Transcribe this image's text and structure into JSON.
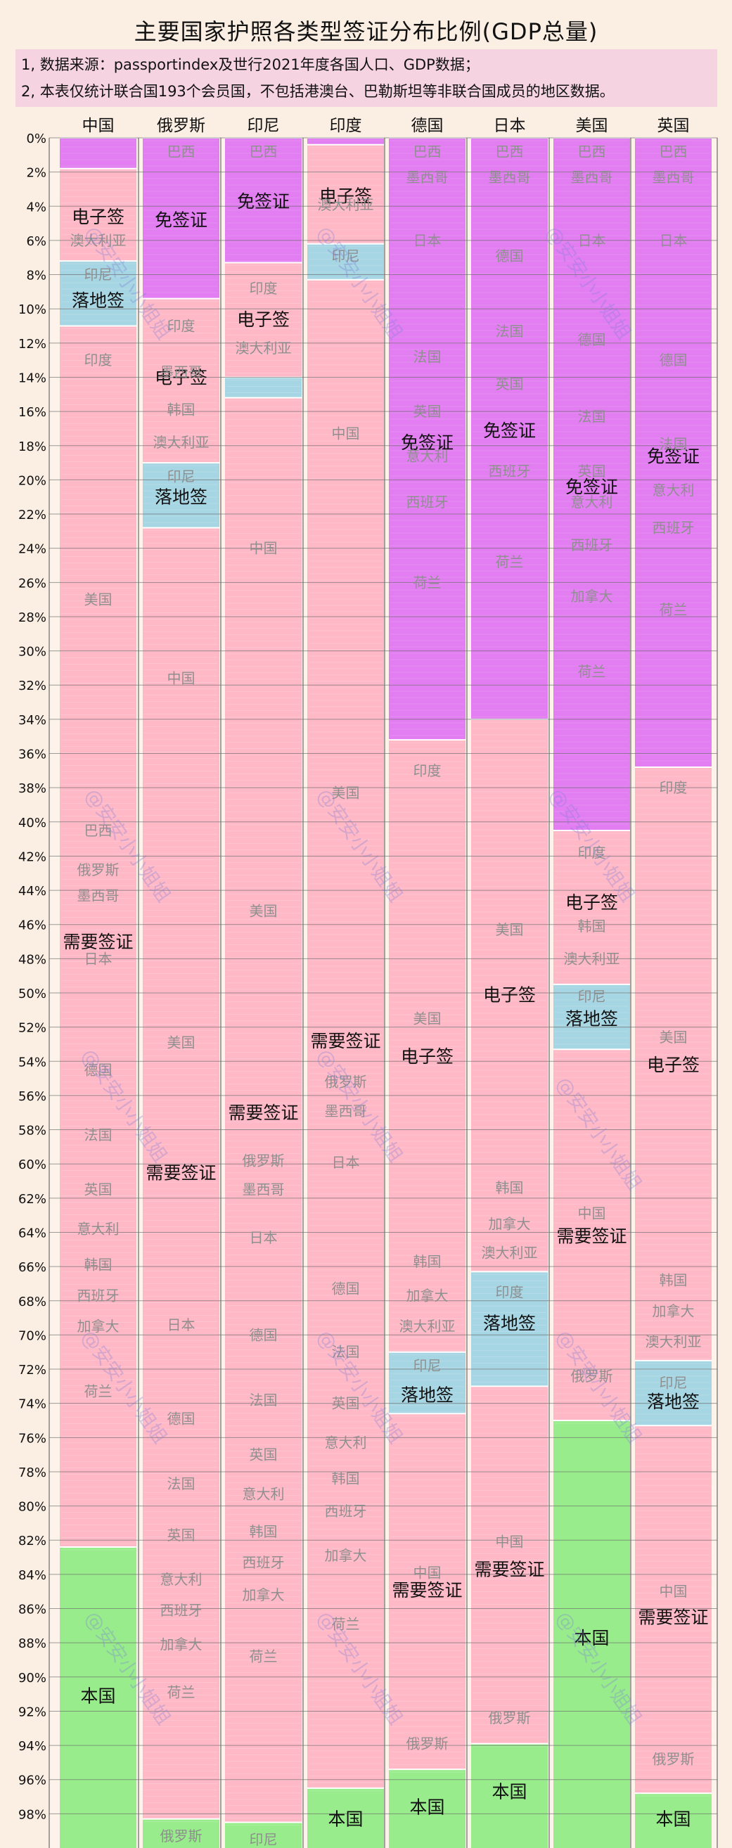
{
  "title": "主要国家护照各类型签证分布比例(GDP总量)",
  "notes": [
    "1, 数据来源：passportindex及世行2021年度各国人口、GDP数据；",
    "2, 本表仅统计联合国193个会员国，不包括港澳台、巴勒斯坦等非联合国成员的地区数据。"
  ],
  "watermark": "@安安小小姐姐",
  "colors": {
    "免签证": "#e27ef2",
    "电子签": "#ffb8c6",
    "落地签": "#a6d5e3",
    "需要签证": "#ffb8c6",
    "本国": "#98ec8c"
  },
  "chart_data": {
    "type": "bar",
    "stacked": true,
    "orientation": "vertical",
    "inverted_y": true,
    "unit": "%",
    "ylim": [
      0,
      100
    ],
    "yticks": [
      0,
      2,
      4,
      6,
      8,
      10,
      12,
      14,
      16,
      18,
      20,
      22,
      24,
      26,
      28,
      30,
      32,
      34,
      36,
      38,
      40,
      42,
      44,
      46,
      48,
      50,
      52,
      54,
      56,
      58,
      60,
      62,
      64,
      66,
      68,
      70,
      72,
      74,
      76,
      78,
      80,
      82,
      84,
      86,
      88,
      90,
      92,
      94,
      96,
      98
    ],
    "grid": true,
    "categories": [
      "中国",
      "俄罗斯",
      "印尼",
      "印度",
      "德国",
      "日本",
      "美国",
      "英国"
    ],
    "columns": [
      {
        "country": "中国",
        "segments": [
          {
            "type": "免签证",
            "start": 0,
            "end": 1.8
          },
          {
            "type": "电子签",
            "start": 1.8,
            "end": 7.2,
            "label": "电子签",
            "mid": 4.6
          },
          {
            "type": "落地签",
            "start": 7.2,
            "end": 11.0,
            "label": "落地签",
            "mid": 9.5
          },
          {
            "type": "需要签证",
            "start": 11.0,
            "end": 82.4,
            "label": "需要签证",
            "mid": 47.0
          },
          {
            "type": "本国",
            "start": 82.4,
            "end": 100,
            "label": "本国",
            "mid": 91.1
          }
        ],
        "country_labels": [
          {
            "name": "澳大利亚",
            "at": 6.0
          },
          {
            "name": "印尼",
            "at": 8.0
          },
          {
            "name": "印度",
            "at": 13.0
          },
          {
            "name": "美国",
            "at": 27.0
          },
          {
            "name": "巴西",
            "at": 40.5
          },
          {
            "name": "俄罗斯",
            "at": 42.8
          },
          {
            "name": "墨西哥",
            "at": 44.3
          },
          {
            "name": "日本",
            "at": 48.0
          },
          {
            "name": "德国",
            "at": 54.5
          },
          {
            "name": "法国",
            "at": 58.3
          },
          {
            "name": "英国",
            "at": 61.5
          },
          {
            "name": "意大利",
            "at": 63.8
          },
          {
            "name": "韩国",
            "at": 65.9
          },
          {
            "name": "西班牙",
            "at": 67.7
          },
          {
            "name": "加拿大",
            "at": 69.5
          },
          {
            "name": "荷兰",
            "at": 73.3
          }
        ]
      },
      {
        "country": "俄罗斯",
        "segments": [
          {
            "type": "免签证",
            "start": 0,
            "end": 9.4,
            "label": "免签证",
            "mid": 4.8
          },
          {
            "type": "电子签",
            "start": 9.4,
            "end": 19.0,
            "label": "电子签",
            "mid": 14.0
          },
          {
            "type": "落地签",
            "start": 19.0,
            "end": 22.8,
            "label": "落地签",
            "mid": 21.0
          },
          {
            "type": "需要签证",
            "start": 22.8,
            "end": 98.3,
            "label": "需要签证",
            "mid": 60.5
          },
          {
            "type": "本国",
            "start": 98.3,
            "end": 100
          }
        ],
        "country_labels": [
          {
            "name": "巴西",
            "at": 0.8
          },
          {
            "name": "印度",
            "at": 11.0
          },
          {
            "name": "墨西哥",
            "at": 13.7
          },
          {
            "name": "韩国",
            "at": 15.9
          },
          {
            "name": "澳大利亚",
            "at": 17.8
          },
          {
            "name": "印尼",
            "at": 19.8
          },
          {
            "name": "中国",
            "at": 31.6
          },
          {
            "name": "美国",
            "at": 52.9
          },
          {
            "name": "日本",
            "at": 69.4
          },
          {
            "name": "德国",
            "at": 74.9
          },
          {
            "name": "法国",
            "at": 78.7
          },
          {
            "name": "英国",
            "at": 81.7
          },
          {
            "name": "意大利",
            "at": 84.3
          },
          {
            "name": "西班牙",
            "at": 86.1
          },
          {
            "name": "加拿大",
            "at": 88.1
          },
          {
            "name": "荷兰",
            "at": 90.9
          },
          {
            "name": "俄罗斯",
            "at": 99.3
          }
        ]
      },
      {
        "country": "印尼",
        "segments": [
          {
            "type": "免签证",
            "start": 0,
            "end": 7.3,
            "label": "免签证",
            "mid": 3.7
          },
          {
            "type": "电子签",
            "start": 7.3,
            "end": 14.0,
            "label": "电子签",
            "mid": 10.6
          },
          {
            "type": "落地签",
            "start": 14.0,
            "end": 15.2
          },
          {
            "type": "需要签证",
            "start": 15.2,
            "end": 98.5,
            "label": "需要签证",
            "mid": 57.0
          },
          {
            "type": "本国",
            "start": 98.5,
            "end": 100
          }
        ],
        "country_labels": [
          {
            "name": "巴西",
            "at": 0.8
          },
          {
            "name": "印度",
            "at": 8.8
          },
          {
            "name": "澳大利亚",
            "at": 12.3
          },
          {
            "name": "中国",
            "at": 24.0
          },
          {
            "name": "美国",
            "at": 45.2
          },
          {
            "name": "俄罗斯",
            "at": 59.8
          },
          {
            "name": "墨西哥",
            "at": 61.5
          },
          {
            "name": "日本",
            "at": 64.3
          },
          {
            "name": "德国",
            "at": 70.0
          },
          {
            "name": "法国",
            "at": 73.8
          },
          {
            "name": "英国",
            "at": 77.0
          },
          {
            "name": "意大利",
            "at": 79.3
          },
          {
            "name": "韩国",
            "at": 81.5
          },
          {
            "name": "西班牙",
            "at": 83.3
          },
          {
            "name": "加拿大",
            "at": 85.2
          },
          {
            "name": "荷兰",
            "at": 88.8
          },
          {
            "name": "印尼",
            "at": 99.5
          }
        ]
      },
      {
        "country": "印度",
        "segments": [
          {
            "type": "免签证",
            "start": 0,
            "end": 0.4
          },
          {
            "type": "电子签",
            "start": 0.4,
            "end": 6.2,
            "label": "电子签",
            "mid": 3.4
          },
          {
            "type": "落地签",
            "start": 6.2,
            "end": 8.3
          },
          {
            "type": "需要签证",
            "start": 8.3,
            "end": 96.5,
            "label": "需要签证",
            "mid": 52.8
          },
          {
            "type": "本国",
            "start": 96.5,
            "end": 100,
            "label": "本国",
            "mid": 98.3
          }
        ],
        "country_labels": [
          {
            "name": "澳大利亚",
            "at": 3.9
          },
          {
            "name": "印尼",
            "at": 6.9
          },
          {
            "name": "中国",
            "at": 17.3
          },
          {
            "name": "美国",
            "at": 38.3
          },
          {
            "name": "俄罗斯",
            "at": 55.2
          },
          {
            "name": "墨西哥",
            "at": 56.9
          },
          {
            "name": "日本",
            "at": 59.9
          },
          {
            "name": "德国",
            "at": 67.3
          },
          {
            "name": "法国",
            "at": 71.0
          },
          {
            "name": "英国",
            "at": 74.0
          },
          {
            "name": "意大利",
            "at": 76.3
          },
          {
            "name": "韩国",
            "at": 78.4
          },
          {
            "name": "西班牙",
            "at": 80.3
          },
          {
            "name": "加拿大",
            "at": 82.9
          },
          {
            "name": "荷兰",
            "at": 86.9
          }
        ]
      },
      {
        "country": "德国",
        "segments": [
          {
            "type": "免签证",
            "start": 0,
            "end": 35.2,
            "label": "免签证",
            "mid": 17.8
          },
          {
            "type": "电子签",
            "start": 35.2,
            "end": 71.0,
            "label": "电子签",
            "mid": 53.7
          },
          {
            "type": "落地签",
            "start": 71.0,
            "end": 74.6,
            "label": "落地签",
            "mid": 73.5
          },
          {
            "type": "需要签证",
            "start": 74.6,
            "end": 95.4,
            "label": "需要签证",
            "mid": 84.9
          },
          {
            "type": "本国",
            "start": 95.4,
            "end": 100,
            "label": "本国",
            "mid": 97.6
          }
        ],
        "country_labels": [
          {
            "name": "巴西",
            "at": 0.8
          },
          {
            "name": "墨西哥",
            "at": 2.3
          },
          {
            "name": "日本",
            "at": 6.0
          },
          {
            "name": "法国",
            "at": 12.8
          },
          {
            "name": "英国",
            "at": 16.0
          },
          {
            "name": "意大利",
            "at": 18.6
          },
          {
            "name": "西班牙",
            "at": 21.3
          },
          {
            "name": "荷兰",
            "at": 26.0
          },
          {
            "name": "印度",
            "at": 37.0
          },
          {
            "name": "美国",
            "at": 51.5
          },
          {
            "name": "韩国",
            "at": 65.7
          },
          {
            "name": "加拿大",
            "at": 67.7
          },
          {
            "name": "澳大利亚",
            "at": 69.5
          },
          {
            "name": "印尼",
            "at": 71.8
          },
          {
            "name": "中国",
            "at": 83.9
          },
          {
            "name": "俄罗斯",
            "at": 93.9
          }
        ]
      },
      {
        "country": "日本",
        "segments": [
          {
            "type": "免签证",
            "start": 0,
            "end": 34.0,
            "label": "免签证",
            "mid": 17.1
          },
          {
            "type": "电子签",
            "start": 34.0,
            "end": 66.3,
            "label": "电子签",
            "mid": 50.1
          },
          {
            "type": "落地签",
            "start": 66.3,
            "end": 73.0,
            "label": "落地签",
            "mid": 69.3
          },
          {
            "type": "需要签证",
            "start": 73.0,
            "end": 93.9,
            "label": "需要签证",
            "mid": 83.7
          },
          {
            "type": "本国",
            "start": 93.9,
            "end": 100,
            "label": "本国",
            "mid": 96.7
          }
        ],
        "country_labels": [
          {
            "name": "巴西",
            "at": 0.8
          },
          {
            "name": "墨西哥",
            "at": 2.3
          },
          {
            "name": "德国",
            "at": 6.9
          },
          {
            "name": "法国",
            "at": 11.3
          },
          {
            "name": "英国",
            "at": 14.4
          },
          {
            "name": "西班牙",
            "at": 19.5
          },
          {
            "name": "荷兰",
            "at": 24.8
          },
          {
            "name": "美国",
            "at": 46.3
          },
          {
            "name": "韩国",
            "at": 61.4
          },
          {
            "name": "加拿大",
            "at": 63.5
          },
          {
            "name": "澳大利亚",
            "at": 65.2
          },
          {
            "name": "印度",
            "at": 67.5
          },
          {
            "name": "中国",
            "at": 82.1
          },
          {
            "name": "俄罗斯",
            "at": 92.4
          }
        ]
      },
      {
        "country": "美国",
        "segments": [
          {
            "type": "免签证",
            "start": 0,
            "end": 40.5,
            "label": "免签证",
            "mid": 20.4
          },
          {
            "type": "电子签",
            "start": 40.5,
            "end": 49.5,
            "label": "电子签",
            "mid": 44.7
          },
          {
            "type": "落地签",
            "start": 49.5,
            "end": 53.3,
            "label": "落地签",
            "mid": 51.5
          },
          {
            "type": "需要签证",
            "start": 53.3,
            "end": 75.0,
            "label": "需要签证",
            "mid": 64.2
          },
          {
            "type": "本国",
            "start": 75.0,
            "end": 100,
            "label": "本国",
            "mid": 87.7
          }
        ],
        "country_labels": [
          {
            "name": "巴西",
            "at": 0.8
          },
          {
            "name": "墨西哥",
            "at": 2.3
          },
          {
            "name": "日本",
            "at": 6.0
          },
          {
            "name": "德国",
            "at": 11.8
          },
          {
            "name": "法国",
            "at": 16.3
          },
          {
            "name": "英国",
            "at": 19.5
          },
          {
            "name": "意大利",
            "at": 21.3
          },
          {
            "name": "西班牙",
            "at": 23.8
          },
          {
            "name": "加拿大",
            "at": 26.8
          },
          {
            "name": "荷兰",
            "at": 31.2
          },
          {
            "name": "印度",
            "at": 41.8
          },
          {
            "name": "韩国",
            "at": 46.1
          },
          {
            "name": "澳大利亚",
            "at": 48.0
          },
          {
            "name": "印尼",
            "at": 50.2
          },
          {
            "name": "中国",
            "at": 62.9
          },
          {
            "name": "俄罗斯",
            "at": 72.4
          }
        ]
      },
      {
        "country": "英国",
        "segments": [
          {
            "type": "免签证",
            "start": 0,
            "end": 36.8,
            "label": "免签证",
            "mid": 18.6
          },
          {
            "type": "电子签",
            "start": 36.8,
            "end": 71.5,
            "label": "电子签",
            "mid": 54.2
          },
          {
            "type": "落地签",
            "start": 71.5,
            "end": 75.3,
            "label": "落地签",
            "mid": 73.9
          },
          {
            "type": "需要签证",
            "start": 75.3,
            "end": 96.8,
            "label": "需要签证",
            "mid": 86.5
          },
          {
            "type": "本国",
            "start": 96.8,
            "end": 100,
            "label": "本国",
            "mid": 98.3
          }
        ],
        "country_labels": [
          {
            "name": "巴西",
            "at": 0.8
          },
          {
            "name": "墨西哥",
            "at": 2.3
          },
          {
            "name": "日本",
            "at": 6.0
          },
          {
            "name": "德国",
            "at": 13.0
          },
          {
            "name": "法国",
            "at": 17.9
          },
          {
            "name": "意大利",
            "at": 20.6
          },
          {
            "name": "西班牙",
            "at": 22.8
          },
          {
            "name": "荷兰",
            "at": 27.6
          },
          {
            "name": "印度",
            "at": 38.0
          },
          {
            "name": "美国",
            "at": 52.6
          },
          {
            "name": "韩国",
            "at": 66.8
          },
          {
            "name": "加拿大",
            "at": 68.6
          },
          {
            "name": "澳大利亚",
            "at": 70.4
          },
          {
            "name": "印尼",
            "at": 72.8
          },
          {
            "name": "中国",
            "at": 85.0
          },
          {
            "name": "俄罗斯",
            "at": 94.8
          }
        ]
      }
    ]
  }
}
